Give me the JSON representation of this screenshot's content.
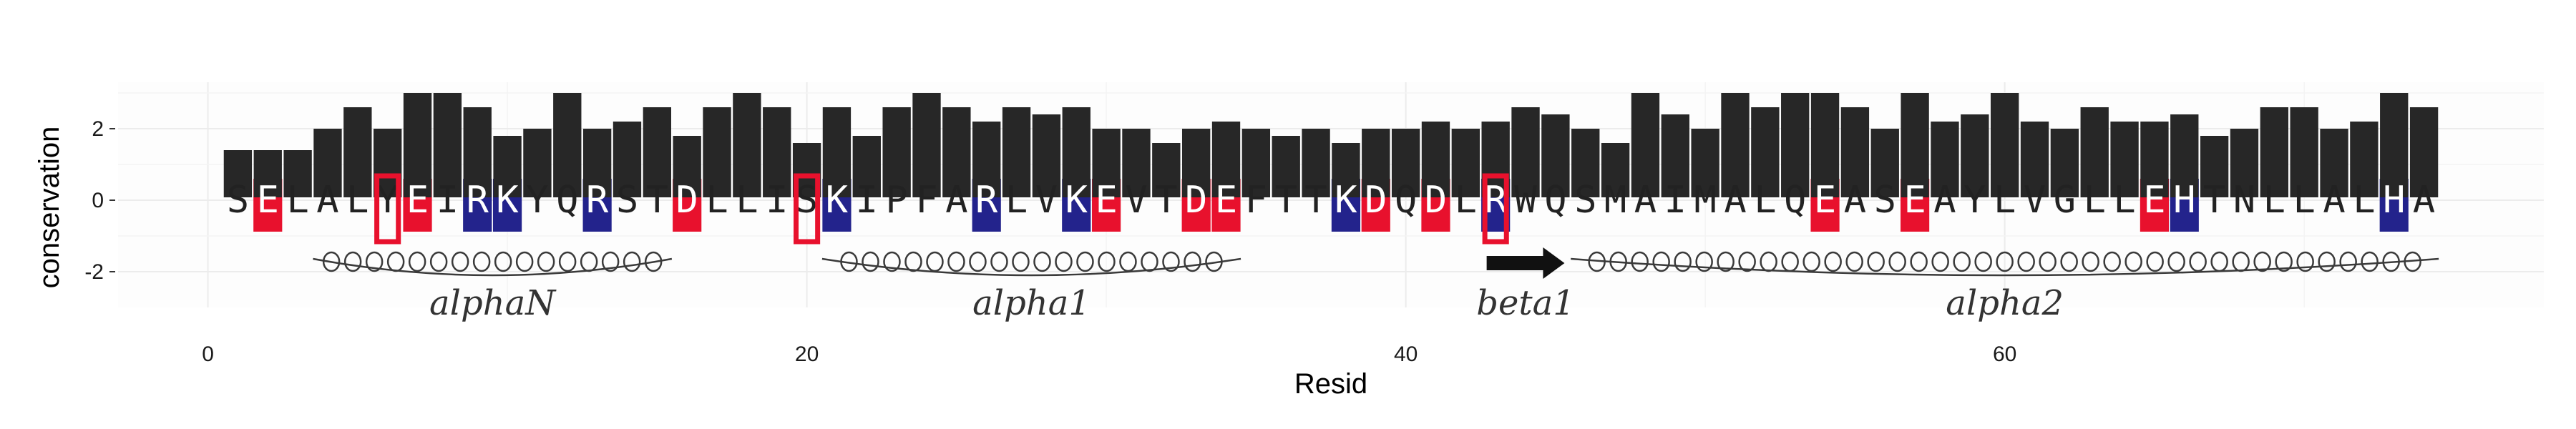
{
  "chart_data": {
    "type": "bar",
    "xlabel": "Resid",
    "ylabel": "conservation",
    "xlim": [
      -3,
      78
    ],
    "ylim": [
      -3,
      3.3
    ],
    "xticks": [
      0,
      20,
      40,
      60
    ],
    "yticks": [
      -2,
      0,
      2
    ],
    "grid": true,
    "residues": [
      "S",
      "E",
      "L",
      "A",
      "L",
      "Y",
      "E",
      "I",
      "R",
      "K",
      "Y",
      "Q",
      "R",
      "S",
      "T",
      "D",
      "L",
      "L",
      "I",
      "S",
      "K",
      "I",
      "P",
      "F",
      "A",
      "R",
      "L",
      "V",
      "K",
      "E",
      "V",
      "T",
      "D",
      "E",
      "F",
      "T",
      "T",
      "K",
      "D",
      "Q",
      "D",
      "L",
      "R",
      "W",
      "Q",
      "S",
      "M",
      "A",
      "I",
      "M",
      "A",
      "L",
      "Q",
      "E",
      "A",
      "S",
      "E",
      "A",
      "Y",
      "L",
      "V",
      "G",
      "L",
      "L",
      "E",
      "H",
      "T",
      "N",
      "L",
      "L",
      "A",
      "L",
      "H",
      "A"
    ],
    "resid": [
      1,
      2,
      3,
      4,
      5,
      6,
      7,
      8,
      9,
      10,
      11,
      12,
      13,
      14,
      15,
      16,
      17,
      18,
      19,
      20,
      21,
      22,
      23,
      24,
      25,
      26,
      27,
      28,
      29,
      30,
      31,
      32,
      33,
      34,
      35,
      36,
      37,
      38,
      39,
      40,
      41,
      42,
      43,
      44,
      45,
      46,
      47,
      48,
      49,
      50,
      51,
      52,
      53,
      54,
      55,
      56,
      57,
      58,
      59,
      60,
      61,
      62,
      63,
      64,
      65,
      66,
      67,
      68,
      69,
      70,
      71,
      72,
      73,
      74
    ],
    "conservation": [
      1.4,
      1.4,
      1.4,
      2.0,
      2.6,
      2.0,
      3.0,
      3.0,
      2.6,
      1.8,
      2.0,
      3.0,
      2.0,
      2.2,
      2.6,
      1.8,
      2.6,
      3.0,
      2.6,
      1.6,
      2.6,
      1.8,
      2.6,
      3.0,
      2.6,
      2.2,
      2.6,
      2.4,
      2.6,
      2.0,
      2.0,
      1.6,
      2.0,
      2.2,
      2.0,
      1.8,
      2.0,
      1.6,
      2.0,
      2.0,
      2.2,
      2.0,
      2.2,
      2.6,
      2.4,
      2.0,
      1.6,
      3.0,
      2.4,
      2.0,
      3.0,
      2.6,
      3.0,
      3.0,
      2.6,
      2.0,
      3.0,
      2.2,
      2.4,
      3.0,
      2.2,
      2.0,
      2.6,
      2.2,
      2.2,
      2.4,
      1.8,
      2.0,
      2.6,
      2.6,
      2.0,
      2.2,
      3.0,
      2.6
    ],
    "highlights": {
      "red": [
        2,
        7,
        16,
        30,
        33,
        34,
        39,
        41,
        54,
        57,
        65
      ],
      "blue": [
        9,
        10,
        13,
        21,
        26,
        29,
        38,
        43,
        66,
        73
      ],
      "boxed": [
        6,
        20,
        43
      ]
    },
    "secondary_structure": [
      {
        "type": "helix",
        "label": "alphaN",
        "start": 4,
        "end": 15
      },
      {
        "type": "helix",
        "label": "alpha1",
        "start": 21,
        "end": 34
      },
      {
        "type": "strand",
        "label": "beta1",
        "start": 43,
        "end": 45
      },
      {
        "type": "helix",
        "label": "alpha2",
        "start": 46,
        "end": 74
      }
    ],
    "colors": {
      "bar": "#272727",
      "red": "#e8112d",
      "blue": "#23238c",
      "box": "#e8112d",
      "grid": "#ececec",
      "text": "#333333"
    }
  }
}
